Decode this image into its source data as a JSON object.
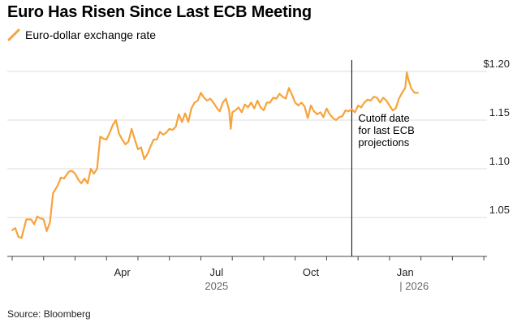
{
  "chart_data": {
    "type": "line",
    "title": "Euro Has Risen Since Last ECB Meeting",
    "legend_label": "Euro-dollar exchange rate",
    "source": "Source: Bloomberg",
    "y_ticks": [
      {
        "value": 1.2,
        "label": "$1.20"
      },
      {
        "value": 1.15,
        "label": "1.15"
      },
      {
        "value": 1.1,
        "label": "1.10"
      },
      {
        "value": 1.05,
        "label": "1.05"
      }
    ],
    "ylim": [
      1.01,
      1.22
    ],
    "x_months": [
      {
        "index": 3,
        "label": "Apr"
      },
      {
        "index": 6,
        "label": "Jul"
      },
      {
        "index": 9,
        "label": "Oct"
      },
      {
        "index": 12,
        "label": "Jan"
      }
    ],
    "x_range_months": [
      0,
      15.1
    ],
    "year_labels": [
      {
        "index": 6,
        "label": "2025"
      },
      {
        "index": 12,
        "label": "| 2026"
      }
    ],
    "annotation": {
      "month_index": 10.8,
      "lines": [
        "Cutoff date",
        "for last ECB",
        "projections"
      ]
    },
    "color": "#f7a33c",
    "series": [
      {
        "name": "Euro-dollar exchange rate",
        "points": [
          [
            0.0,
            1.037
          ],
          [
            0.1,
            1.039
          ],
          [
            0.2,
            1.03
          ],
          [
            0.3,
            1.029
          ],
          [
            0.45,
            1.048
          ],
          [
            0.6,
            1.048
          ],
          [
            0.7,
            1.043
          ],
          [
            0.8,
            1.051
          ],
          [
            0.9,
            1.049
          ],
          [
            1.0,
            1.048
          ],
          [
            1.1,
            1.036
          ],
          [
            1.2,
            1.045
          ],
          [
            1.3,
            1.075
          ],
          [
            1.45,
            1.083
          ],
          [
            1.55,
            1.091
          ],
          [
            1.65,
            1.09
          ],
          [
            1.8,
            1.097
          ],
          [
            1.9,
            1.098
          ],
          [
            2.0,
            1.095
          ],
          [
            2.1,
            1.089
          ],
          [
            2.2,
            1.085
          ],
          [
            2.3,
            1.09
          ],
          [
            2.4,
            1.085
          ],
          [
            2.5,
            1.1
          ],
          [
            2.6,
            1.095
          ],
          [
            2.7,
            1.1
          ],
          [
            2.8,
            1.133
          ],
          [
            2.9,
            1.131
          ],
          [
            3.0,
            1.13
          ],
          [
            3.1,
            1.137
          ],
          [
            3.2,
            1.145
          ],
          [
            3.3,
            1.15
          ],
          [
            3.4,
            1.136
          ],
          [
            3.5,
            1.13
          ],
          [
            3.6,
            1.125
          ],
          [
            3.7,
            1.128
          ],
          [
            3.8,
            1.141
          ],
          [
            3.9,
            1.13
          ],
          [
            4.0,
            1.12
          ],
          [
            4.1,
            1.122
          ],
          [
            4.2,
            1.11
          ],
          [
            4.3,
            1.115
          ],
          [
            4.4,
            1.123
          ],
          [
            4.5,
            1.13
          ],
          [
            4.6,
            1.13
          ],
          [
            4.7,
            1.138
          ],
          [
            4.8,
            1.135
          ],
          [
            4.9,
            1.137
          ],
          [
            5.0,
            1.141
          ],
          [
            5.1,
            1.14
          ],
          [
            5.2,
            1.143
          ],
          [
            5.3,
            1.156
          ],
          [
            5.4,
            1.148
          ],
          [
            5.5,
            1.157
          ],
          [
            5.6,
            1.148
          ],
          [
            5.7,
            1.162
          ],
          [
            5.8,
            1.168
          ],
          [
            5.9,
            1.17
          ],
          [
            6.0,
            1.178
          ],
          [
            6.1,
            1.173
          ],
          [
            6.2,
            1.17
          ],
          [
            6.3,
            1.172
          ],
          [
            6.4,
            1.168
          ],
          [
            6.5,
            1.163
          ],
          [
            6.6,
            1.159
          ],
          [
            6.7,
            1.168
          ],
          [
            6.8,
            1.172
          ],
          [
            6.9,
            1.16
          ],
          [
            6.95,
            1.141
          ],
          [
            7.0,
            1.158
          ],
          [
            7.1,
            1.16
          ],
          [
            7.2,
            1.163
          ],
          [
            7.3,
            1.158
          ],
          [
            7.4,
            1.166
          ],
          [
            7.5,
            1.163
          ],
          [
            7.6,
            1.168
          ],
          [
            7.7,
            1.162
          ],
          [
            7.8,
            1.17
          ],
          [
            7.9,
            1.163
          ],
          [
            8.0,
            1.16
          ],
          [
            8.1,
            1.168
          ],
          [
            8.2,
            1.168
          ],
          [
            8.3,
            1.173
          ],
          [
            8.4,
            1.172
          ],
          [
            8.5,
            1.177
          ],
          [
            8.6,
            1.174
          ],
          [
            8.7,
            1.172
          ],
          [
            8.8,
            1.183
          ],
          [
            8.9,
            1.176
          ],
          [
            9.0,
            1.168
          ],
          [
            9.1,
            1.165
          ],
          [
            9.2,
            1.168
          ],
          [
            9.3,
            1.164
          ],
          [
            9.4,
            1.152
          ],
          [
            9.5,
            1.165
          ],
          [
            9.6,
            1.159
          ],
          [
            9.7,
            1.156
          ],
          [
            9.8,
            1.158
          ],
          [
            9.9,
            1.153
          ],
          [
            10.0,
            1.162
          ],
          [
            10.1,
            1.156
          ],
          [
            10.2,
            1.152
          ],
          [
            10.3,
            1.15
          ],
          [
            10.4,
            1.153
          ],
          [
            10.5,
            1.154
          ],
          [
            10.6,
            1.16
          ],
          [
            10.7,
            1.159
          ],
          [
            10.8,
            1.161
          ],
          [
            10.9,
            1.158
          ],
          [
            11.0,
            1.165
          ],
          [
            11.1,
            1.163
          ],
          [
            11.2,
            1.168
          ],
          [
            11.3,
            1.171
          ],
          [
            11.4,
            1.17
          ],
          [
            11.5,
            1.174
          ],
          [
            11.6,
            1.173
          ],
          [
            11.7,
            1.168
          ],
          [
            11.8,
            1.173
          ],
          [
            11.9,
            1.17
          ],
          [
            12.0,
            1.165
          ],
          [
            12.1,
            1.16
          ],
          [
            12.2,
            1.162
          ],
          [
            12.3,
            1.172
          ],
          [
            12.4,
            1.178
          ],
          [
            12.5,
            1.183
          ],
          [
            12.55,
            1.199
          ],
          [
            12.6,
            1.192
          ],
          [
            12.7,
            1.182
          ],
          [
            12.8,
            1.178
          ],
          [
            12.9,
            1.178
          ]
        ]
      }
    ]
  }
}
